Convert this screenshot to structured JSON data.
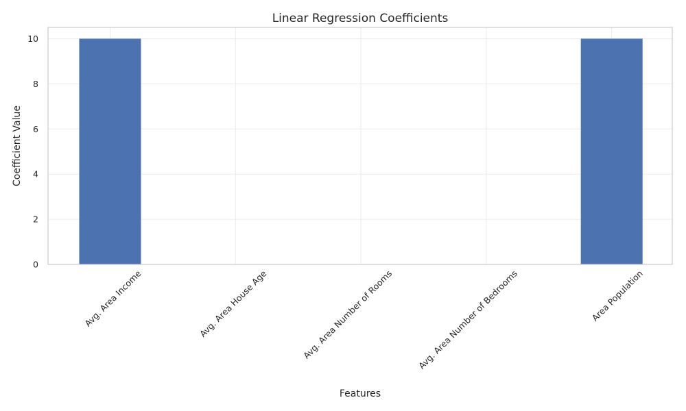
{
  "chart_data": {
    "type": "bar",
    "title": "Linear Regression Coefficients",
    "xlabel": "Features",
    "ylabel": "Coefficient Value",
    "categories": [
      "Avg. Area Income",
      "Avg. Area House Age",
      "Avg. Area Number of Rooms",
      "Avg. Area Number of Bedrooms",
      "Area Population"
    ],
    "values": [
      10,
      0,
      0,
      0,
      10
    ],
    "ylim": [
      0,
      10.5
    ],
    "yticks": [
      0,
      2,
      4,
      6,
      8,
      10
    ],
    "grid": true,
    "colors": {
      "bar": "#4c72b0",
      "grid": "#ebebeb",
      "frame": "#cccccc",
      "text": "#262626"
    }
  }
}
